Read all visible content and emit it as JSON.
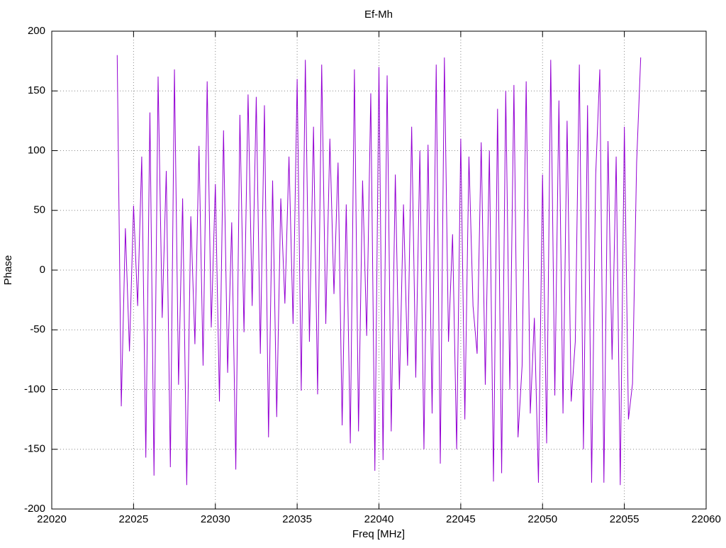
{
  "chart_data": {
    "type": "line",
    "title": "Ef-Mh",
    "x_label": "Freq [MHz]",
    "y_label": "Phase",
    "x": [
      22024,
      22024.25,
      22024.5,
      22024.75,
      22025,
      22025.25,
      22025.5,
      22025.75,
      22026,
      22026.25,
      22026.5,
      22026.75,
      22027,
      22027.25,
      22027.5,
      22027.75,
      22028,
      22028.25,
      22028.5,
      22028.75,
      22029,
      22029.25,
      22029.5,
      22029.75,
      22030,
      22030.25,
      22030.5,
      22030.75,
      22031,
      22031.25,
      22031.5,
      22031.75,
      22032,
      22032.25,
      22032.5,
      22032.75,
      22033,
      22033.25,
      22033.5,
      22033.75,
      22034,
      22034.25,
      22034.5,
      22034.75,
      22035,
      22035.25,
      22035.5,
      22035.75,
      22036,
      22036.25,
      22036.5,
      22036.75,
      22037,
      22037.25,
      22037.5,
      22037.75,
      22038,
      22038.25,
      22038.5,
      22038.75,
      22039,
      22039.25,
      22039.5,
      22039.75,
      22040,
      22040.25,
      22040.5,
      22040.75,
      22041,
      22041.25,
      22041.5,
      22041.75,
      22042,
      22042.25,
      22042.5,
      22042.75,
      22043,
      22043.25,
      22043.5,
      22043.75,
      22044,
      22044.25,
      22044.5,
      22044.75,
      22045,
      22045.25,
      22045.5,
      22045.75,
      22046,
      22046.25,
      22046.5,
      22046.75,
      22047,
      22047.25,
      22047.5,
      22047.75,
      22048,
      22048.25,
      22048.5,
      22048.75,
      22049,
      22049.25,
      22049.5,
      22049.75,
      22050,
      22050.25,
      22050.5,
      22050.75,
      22051,
      22051.25,
      22051.5,
      22051.75,
      22052,
      22052.25,
      22052.5,
      22052.75,
      22053,
      22053.25,
      22053.5,
      22053.75,
      22054,
      22054.25,
      22054.5,
      22054.75,
      22055,
      22055.25,
      22055.5,
      22055.75,
      22056
    ],
    "values": [
      180,
      -114,
      35,
      -68,
      54,
      -30,
      95,
      -157,
      132,
      -172,
      162,
      -40,
      83,
      -165,
      168,
      -96,
      60,
      -180,
      45,
      -62,
      104,
      -80,
      158,
      -48,
      72,
      -110,
      117,
      -86,
      40,
      -167,
      130,
      -52,
      147,
      -30,
      145,
      -70,
      138,
      -140,
      75,
      -123,
      60,
      -28,
      95,
      -45,
      160,
      -101,
      176,
      -60,
      120,
      -104,
      172,
      -45,
      110,
      -20,
      90,
      -130,
      55,
      -145,
      168,
      -135,
      75,
      -55,
      148,
      -168,
      170,
      -159,
      163,
      -135,
      80,
      -100,
      55,
      -80,
      120,
      -90,
      100,
      -150,
      105,
      -120,
      172,
      -162,
      178,
      -60,
      30,
      -150,
      110,
      -125,
      95,
      -30,
      -70,
      107,
      -96,
      100,
      -177,
      135,
      -170,
      150,
      -100,
      155,
      -140,
      -80,
      158,
      -120,
      -40,
      -178,
      80,
      -145,
      176,
      -105,
      142,
      -120,
      125,
      -110,
      -60,
      172,
      -150,
      138,
      -178,
      80,
      168,
      -178,
      108,
      -75,
      95,
      -180,
      120,
      -125,
      -95,
      90,
      178
    ],
    "color": "#9400d3",
    "xlim": [
      22020,
      22060
    ],
    "xticks": [
      22020,
      22025,
      22030,
      22035,
      22040,
      22045,
      22050,
      22055,
      22060
    ],
    "ylim": [
      -200,
      200
    ],
    "yticks": [
      -200,
      -150,
      -100,
      -50,
      0,
      50,
      100,
      150,
      200
    ],
    "grid": true
  }
}
